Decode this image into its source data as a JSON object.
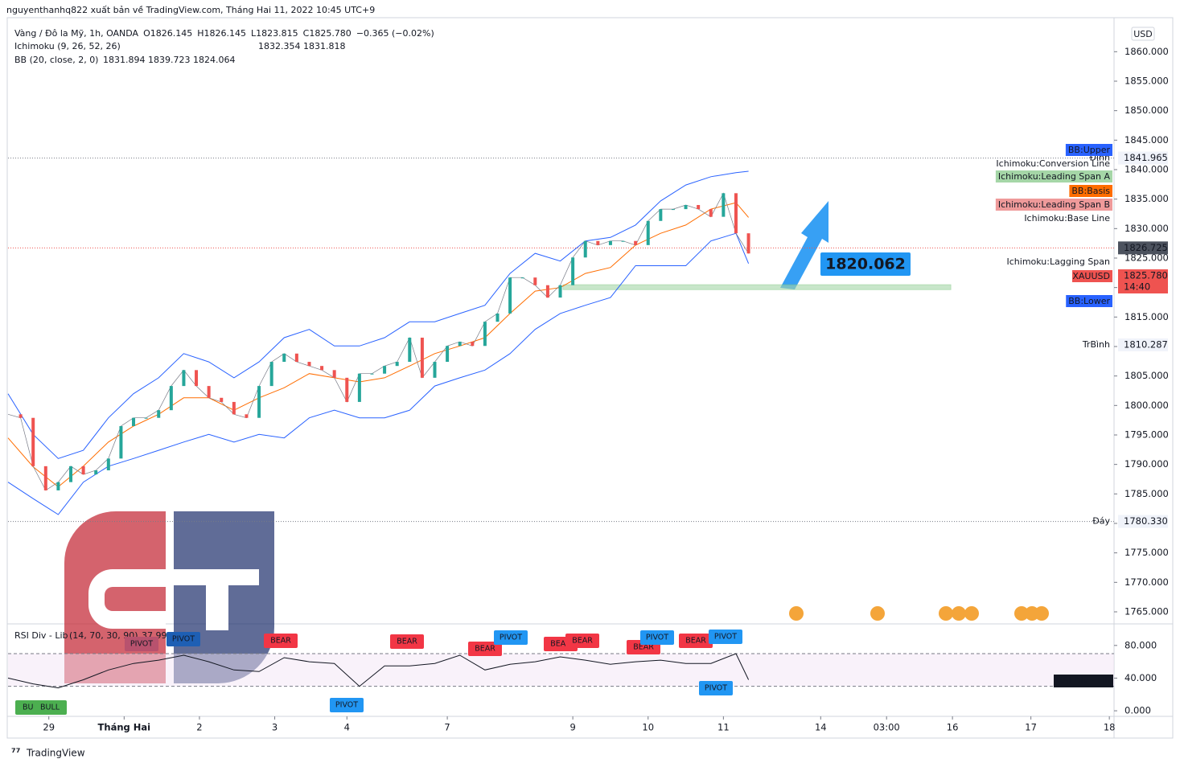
{
  "header": "nguyenthanhq822 xuất bản về TradingView.com, Tháng Hai 11, 2022 10:45 UTC+9",
  "footer": "TradingView",
  "chart_data": {
    "type": "line",
    "currency": "USD",
    "symbol_legend": [
      "Vàng / Đô la Mỹ, 1h, OANDA",
      "O1826.145",
      "H1826.145",
      "L1823.815",
      "C1825.780",
      "−0.365 (−0.02%)"
    ],
    "ichimoku_legend": {
      "name": "Ichimoku (9, 26, 52, 26)",
      "values": [
        1832.354,
        1831.818
      ]
    },
    "bb_legend": {
      "name": "BB (20, close, 2, 0)",
      "values": [
        1831.894,
        1839.723,
        1824.064
      ]
    },
    "xlim": [
      0,
      352.5
    ],
    "xticks": [
      {
        "value": 13,
        "label": "29"
      },
      {
        "value": 37,
        "label": "Tháng Hai"
      },
      {
        "value": 61,
        "label": "2"
      },
      {
        "value": 85,
        "label": "3"
      },
      {
        "value": 108,
        "label": "4"
      },
      {
        "value": 140,
        "label": "7"
      },
      {
        "value": 180,
        "label": "9"
      },
      {
        "value": 204,
        "label": "10"
      },
      {
        "value": 228,
        "label": "11"
      },
      {
        "value": 259,
        "label": "14"
      },
      {
        "value": 280,
        "label": "03:00"
      },
      {
        "value": 301,
        "label": "16"
      },
      {
        "value": 326,
        "label": "17"
      },
      {
        "value": 351,
        "label": "18"
      }
    ],
    "ylim": [
      1763.09,
      1865.77
    ],
    "yticks": [
      {
        "value": 1765,
        "label": "1765.000"
      },
      {
        "value": 1770,
        "label": "1770.000"
      },
      {
        "value": 1775,
        "label": "1775.000"
      },
      {
        "value": 1780,
        "label": "1780.000"
      },
      {
        "value": 1785,
        "label": "1785.000"
      },
      {
        "value": 1790,
        "label": "1790.000"
      },
      {
        "value": 1795,
        "label": "1795.000"
      },
      {
        "value": 1800,
        "label": "1800.000"
      },
      {
        "value": 1805,
        "label": "1805.000"
      },
      {
        "value": 1810,
        "label": "1810.000"
      },
      {
        "value": 1815,
        "label": "1815.000"
      },
      {
        "value": 1820,
        "label": "1820.000"
      },
      {
        "value": 1825,
        "label": "1825.000"
      },
      {
        "value": 1830,
        "label": "1830.000"
      },
      {
        "value": 1835,
        "label": "1835.000"
      },
      {
        "value": 1840,
        "label": "1840.000"
      },
      {
        "value": 1845,
        "label": "1845.000"
      },
      {
        "value": 1850,
        "label": "1850.000"
      },
      {
        "value": 1855,
        "label": "1855.000"
      },
      {
        "value": 1860,
        "label": "1860.000"
      }
    ],
    "price": {
      "up_color": "#26a69a",
      "down_color": "#ef5350",
      "x": [
        0,
        4,
        8,
        12,
        16,
        20,
        24,
        28,
        32,
        36,
        40,
        44,
        48,
        52,
        56,
        60,
        64,
        68,
        72,
        76,
        80,
        84,
        88,
        92,
        96,
        100,
        104,
        108,
        112,
        116,
        120,
        124,
        128,
        132,
        136,
        140,
        144,
        148,
        152,
        156,
        160,
        164,
        168,
        172,
        176,
        180,
        184,
        188,
        192,
        196,
        200,
        204,
        208,
        212,
        216,
        220,
        224,
        228,
        232,
        236
      ],
      "values": [
        1798.5,
        1797.9,
        1789.7,
        1785.6,
        1787,
        1789.7,
        1788.3,
        1789,
        1791,
        1796.5,
        1797.9,
        1797.9,
        1799.2,
        1803.3,
        1806,
        1803.3,
        1801.3,
        1800.6,
        1798.5,
        1797.9,
        1803.3,
        1807.4,
        1808.8,
        1807.4,
        1806.7,
        1806,
        1804.7,
        1800.6,
        1805.4,
        1805.4,
        1806.7,
        1807.4,
        1811.5,
        1804.7,
        1807.4,
        1810.1,
        1810.8,
        1810.1,
        1814.2,
        1815.6,
        1821.7,
        1821.7,
        1820.4,
        1818.3,
        1820.4,
        1825.1,
        1827.9,
        1827.2,
        1827.9,
        1827.9,
        1827.2,
        1831.3,
        1833.3,
        1833.3,
        1834,
        1833.3,
        1832,
        1836,
        1829.2,
        1825.78
      ]
    },
    "bb": {
      "upper_color": "#2962ff",
      "basis_color": "#ff6d00",
      "lower_color": "#2962ff",
      "x": [
        0,
        8,
        16,
        24,
        32,
        40,
        48,
        56,
        64,
        72,
        80,
        88,
        96,
        104,
        112,
        120,
        128,
        136,
        144,
        152,
        160,
        168,
        176,
        184,
        192,
        200,
        208,
        216,
        224,
        232,
        236
      ],
      "upper": [
        1802,
        1795.1,
        1791,
        1792.4,
        1797.9,
        1802,
        1804.7,
        1808.8,
        1807.4,
        1804.7,
        1807.4,
        1811.5,
        1812.9,
        1810.1,
        1810.1,
        1811.5,
        1814.2,
        1814.2,
        1815.6,
        1817,
        1822.4,
        1825.8,
        1824.5,
        1827.9,
        1828.5,
        1830.6,
        1834.7,
        1837.4,
        1838.8,
        1839.5,
        1839.723
      ],
      "basis": [
        1794.5,
        1789.6,
        1786.2,
        1789.7,
        1793.8,
        1796.5,
        1798.5,
        1801.3,
        1801.3,
        1799.2,
        1801.3,
        1803,
        1805.4,
        1804.7,
        1804,
        1804.7,
        1806.7,
        1808.8,
        1810.1,
        1811.5,
        1815.6,
        1819.4,
        1820,
        1822.4,
        1823.4,
        1827.2,
        1829.2,
        1830.6,
        1833.3,
        1834.4,
        1831.894
      ],
      "lower": [
        1787,
        1784.2,
        1781.5,
        1787,
        1789.7,
        1791,
        1792.4,
        1793.8,
        1795.1,
        1793.8,
        1795.1,
        1794.5,
        1797.9,
        1799.2,
        1797.9,
        1797.9,
        1799.2,
        1803.3,
        1804.7,
        1806,
        1808.8,
        1812.9,
        1815.6,
        1817,
        1818.3,
        1823.7,
        1823.7,
        1823.7,
        1827.9,
        1829.2,
        1824.064
      ]
    },
    "high_label": {
      "tag": "Đỉnh",
      "value": 1841.965
    },
    "avg_label": {
      "tag": "TrBình",
      "value": 1810.287
    },
    "low_label": {
      "tag": "Đáy",
      "value": {
        "value": 1780.33,
        "label": "1780.330"
      }
    },
    "crosshair_price": 1826.725,
    "last_price": {
      "symbol": "XAUUSD",
      "value": {
        "value": 1825.78,
        "label": "1825.780"
      },
      "countdown": "14:40"
    },
    "level": 1820.062,
    "badges": [
      "BB:Upper",
      "Ichimoku:Conversion Line",
      "Ichimoku:Leading Span A",
      "BB:Basis",
      "Ichimoku:Leading Span B",
      "Ichimoku:Base Line",
      "Ichimoku:Lagging Span",
      "BB:Lower"
    ],
    "rsi": {
      "name": "RSI Div - Lib",
      "params": "(14, 70, 30, 90)",
      "last": 37.992,
      "color": "#131722",
      "ylim": [
        -7.8,
        105.4
      ],
      "yticks": [
        {
          "value": 0,
          "label": "0.000"
        },
        {
          "value": 40,
          "label": "40.000"
        },
        {
          "value": 80,
          "label": "80.000"
        }
      ],
      "levels": [
        30,
        70
      ],
      "values": [
        40,
        33,
        28,
        38,
        50,
        58,
        62,
        68,
        60,
        50,
        48,
        65,
        60,
        58,
        30,
        55,
        55,
        58,
        68,
        50,
        57,
        60,
        66,
        62,
        57,
        60,
        62,
        58,
        58,
        70,
        37.992
      ],
      "signals": [
        "BULL",
        "BULL",
        "PIVOT",
        "PIVOT",
        "BEAR",
        "PIVOT",
        "BEAR",
        "BEAR",
        "PIVOT",
        "BEAR",
        "BEAR",
        "BEAR",
        "PIVOT",
        "BEAR",
        "PIVOT",
        "PIVOT"
      ]
    }
  }
}
